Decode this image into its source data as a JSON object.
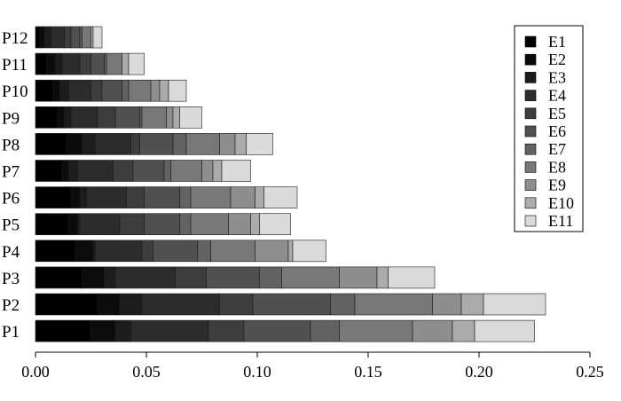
{
  "chart_data": {
    "type": "bar",
    "orientation": "horizontal",
    "stacked": true,
    "categories": [
      "P1",
      "P2",
      "P3",
      "P4",
      "P5",
      "P6",
      "P7",
      "P8",
      "P9",
      "P10",
      "P11",
      "P12"
    ],
    "series": [
      {
        "name": "E1",
        "color": "#000000",
        "values": [
          0.025,
          0.028,
          0.021,
          0.018,
          0.015,
          0.016,
          0.012,
          0.014,
          0.01,
          0.008,
          0.005,
          0.002
        ]
      },
      {
        "name": "E2",
        "color": "#0b0b0b",
        "values": [
          0.011,
          0.01,
          0.01,
          0.008,
          0.004,
          0.004,
          0.003,
          0.007,
          0.003,
          0.003,
          0.004,
          0.002
        ]
      },
      {
        "name": "E3",
        "color": "#1c1c1c",
        "values": [
          0.007,
          0.01,
          0.005,
          0.001,
          0.001,
          0.003,
          0.004,
          0.006,
          0.003,
          0.004,
          0.003,
          0.003
        ]
      },
      {
        "name": "E4",
        "color": "#2c2c2c",
        "values": [
          0.035,
          0.035,
          0.027,
          0.021,
          0.018,
          0.018,
          0.016,
          0.016,
          0.012,
          0.01,
          0.008,
          0.006
        ]
      },
      {
        "name": "E5",
        "color": "#3d3d3d",
        "values": [
          0.016,
          0.015,
          0.014,
          0.005,
          0.011,
          0.008,
          0.009,
          0.004,
          0.008,
          0.005,
          0.005,
          0.003
        ]
      },
      {
        "name": "E6",
        "color": "#505050",
        "values": [
          0.03,
          0.035,
          0.024,
          0.02,
          0.016,
          0.016,
          0.014,
          0.015,
          0.011,
          0.009,
          0.006,
          0.004
        ]
      },
      {
        "name": "E7",
        "color": "#626262",
        "values": [
          0.013,
          0.011,
          0.01,
          0.006,
          0.005,
          0.005,
          0.003,
          0.006,
          0.001,
          0.003,
          0.001,
          0.001
        ]
      },
      {
        "name": "E8",
        "color": "#787878",
        "values": [
          0.033,
          0.035,
          0.026,
          0.02,
          0.017,
          0.018,
          0.014,
          0.015,
          0.011,
          0.01,
          0.007,
          0.004
        ]
      },
      {
        "name": "E9",
        "color": "#8e8e8e",
        "values": [
          0.018,
          0.013,
          0.017,
          0.015,
          0.01,
          0.011,
          0.005,
          0.007,
          0.003,
          0.004,
          0.0,
          0.0
        ]
      },
      {
        "name": "E10",
        "color": "#ababab",
        "values": [
          0.01,
          0.01,
          0.005,
          0.002,
          0.004,
          0.004,
          0.004,
          0.005,
          0.003,
          0.004,
          0.003,
          0.001
        ]
      },
      {
        "name": "E11",
        "color": "#dadada",
        "values": [
          0.027,
          0.028,
          0.021,
          0.015,
          0.014,
          0.015,
          0.013,
          0.012,
          0.01,
          0.008,
          0.007,
          0.004
        ]
      }
    ],
    "xlim": [
      0.0,
      0.25
    ],
    "xticks": [
      "0.00",
      "0.05",
      "0.10",
      "0.15",
      "0.20",
      "0.25"
    ],
    "title": "",
    "xlabel": "",
    "ylabel": "",
    "grid": false,
    "legend_position": "top-right"
  }
}
